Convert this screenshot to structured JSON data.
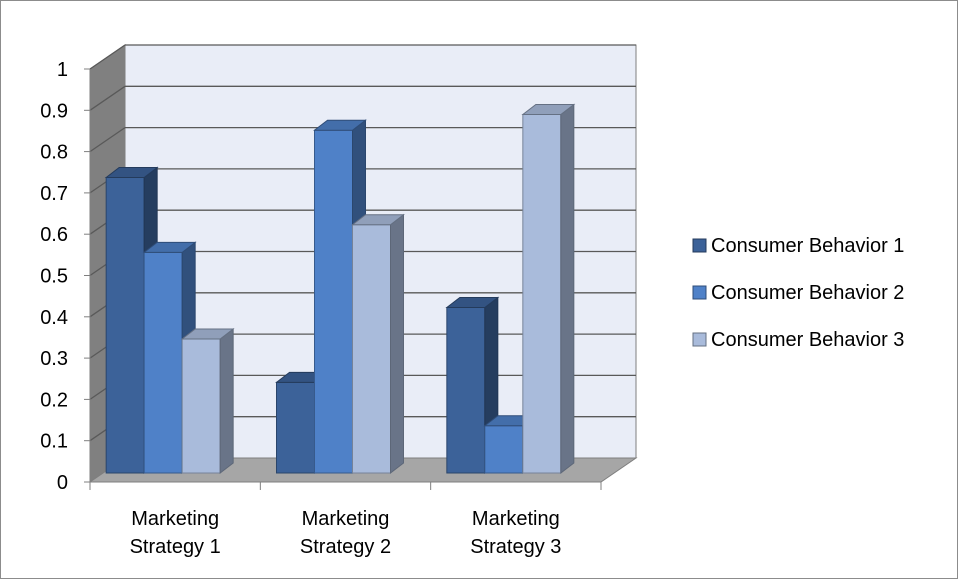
{
  "chart_data": {
    "type": "bar",
    "title": "",
    "xlabel": "",
    "ylabel": "",
    "categories": [
      [
        "Marketing",
        "Strategy 1"
      ],
      [
        "Marketing",
        "Strategy 2"
      ],
      [
        "Marketing",
        "Strategy 3"
      ]
    ],
    "series": [
      {
        "name": "Consumer Behavior 1",
        "values": [
          0.75,
          0.23,
          0.42
        ],
        "color": "#3C6299"
      },
      {
        "name": "Consumer Behavior 2",
        "values": [
          0.56,
          0.87,
          0.12
        ],
        "color": "#4F81C8"
      },
      {
        "name": "Consumer Behavior 3",
        "values": [
          0.34,
          0.63,
          0.91
        ],
        "color": "#A9BBDB"
      }
    ],
    "ylim": [
      0,
      1
    ],
    "yticks": [
      "0",
      "0.1",
      "0.2",
      "0.3",
      "0.4",
      "0.5",
      "0.6",
      "0.7",
      "0.8",
      "0.9",
      "1"
    ],
    "grid": true,
    "legend_position": "right",
    "style": "3d-clustered-column",
    "wall_color": "#E9EDF7",
    "floor_color": "#A6A6A6"
  }
}
